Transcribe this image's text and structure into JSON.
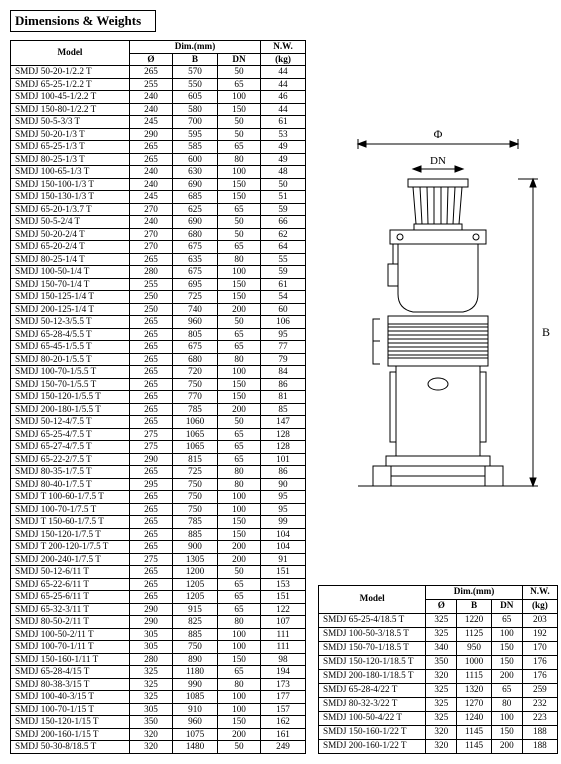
{
  "section_title": "Dimensions & Weights",
  "headers": {
    "model": "Model",
    "dim": "Dim.(mm)",
    "diam": "Ø",
    "b": "B",
    "dn": "DN",
    "nw": "N.W.",
    "nw_unit": "(kg)"
  },
  "diagram": {
    "phi_label": "Φ",
    "dn_label": "DN",
    "b_label": "B",
    "line_color": "#000000",
    "fill_color": "#ffffff"
  },
  "table1_rows": [
    [
      "SMDJ 50-20-1/2.2 T",
      "265",
      "570",
      "50",
      "44"
    ],
    [
      "SMDJ 65-25-1/2.2 T",
      "255",
      "550",
      "65",
      "44"
    ],
    [
      "SMDJ 100-45-1/2.2 T",
      "240",
      "605",
      "100",
      "46"
    ],
    [
      "SMDJ 150-80-1/2.2 T",
      "240",
      "580",
      "150",
      "44"
    ],
    [
      "SMDJ 50-5-3/3 T",
      "245",
      "700",
      "50",
      "61"
    ],
    [
      "SMDJ 50-20-1/3 T",
      "290",
      "595",
      "50",
      "53"
    ],
    [
      "SMDJ 65-25-1/3 T",
      "265",
      "585",
      "65",
      "49"
    ],
    [
      "SMDJ 80-25-1/3 T",
      "265",
      "600",
      "80",
      "49"
    ],
    [
      "SMDJ 100-65-1/3 T",
      "240",
      "630",
      "100",
      "48"
    ],
    [
      "SMDJ 150-100-1/3 T",
      "240",
      "690",
      "150",
      "50"
    ],
    [
      "SMDJ 150-130-1/3 T",
      "245",
      "685",
      "150",
      "51"
    ],
    [
      "SMDJ 65-20-1/3.7 T",
      "270",
      "625",
      "65",
      "59"
    ],
    [
      "SMDJ 50-5-2/4 T",
      "240",
      "690",
      "50",
      "66"
    ],
    [
      "SMDJ 50-20-2/4 T",
      "270",
      "680",
      "50",
      "62"
    ],
    [
      "SMDJ 65-20-2/4 T",
      "270",
      "675",
      "65",
      "64"
    ],
    [
      "SMDJ 80-25-1/4 T",
      "265",
      "635",
      "80",
      "55"
    ],
    [
      "SMDJ 100-50-1/4 T",
      "280",
      "675",
      "100",
      "59"
    ],
    [
      "SMDJ 150-70-1/4 T",
      "255",
      "695",
      "150",
      "61"
    ],
    [
      "SMDJ 150-125-1/4 T",
      "250",
      "725",
      "150",
      "54"
    ],
    [
      "SMDJ 200-125-1/4 T",
      "250",
      "740",
      "200",
      "60"
    ],
    [
      "SMDJ 50-12-3/5.5 T",
      "265",
      "960",
      "50",
      "106"
    ],
    [
      "SMDJ 65-28-4/5.5 T",
      "265",
      "805",
      "65",
      "95"
    ],
    [
      "SMDJ 65-45-1/5.5 T",
      "265",
      "675",
      "65",
      "77"
    ],
    [
      "SMDJ 80-20-1/5.5 T",
      "265",
      "680",
      "80",
      "79"
    ],
    [
      "SMDJ 100-70-1/5.5 T",
      "265",
      "720",
      "100",
      "84"
    ],
    [
      "SMDJ 150-70-1/5.5 T",
      "265",
      "750",
      "150",
      "86"
    ],
    [
      "SMDJ 150-120-1/5.5 T",
      "265",
      "770",
      "150",
      "81"
    ],
    [
      "SMDJ 200-180-1/5.5 T",
      "265",
      "785",
      "200",
      "85"
    ],
    [
      "SMDJ 50-12-4/7.5 T",
      "265",
      "1060",
      "50",
      "147"
    ],
    [
      "SMDJ 65-25-4/7.5 T",
      "275",
      "1065",
      "65",
      "128"
    ],
    [
      "SMDJ 65-27-4/7.5 T",
      "275",
      "1065",
      "65",
      "128"
    ],
    [
      "SMDJ 65-22-2/7.5 T",
      "290",
      "815",
      "65",
      "101"
    ],
    [
      "SMDJ 80-35-1/7.5 T",
      "265",
      "725",
      "80",
      "86"
    ],
    [
      "SMDJ 80-40-1/7.5 T",
      "295",
      "750",
      "80",
      "90"
    ],
    [
      "SMDJ T 100-60-1/7.5 T",
      "265",
      "750",
      "100",
      "95"
    ],
    [
      "SMDJ 100-70-1/7.5 T",
      "265",
      "750",
      "100",
      "95"
    ],
    [
      "SMDJ T 150-60-1/7.5 T",
      "265",
      "785",
      "150",
      "99"
    ],
    [
      "SMDJ 150-120-1/7.5 T",
      "265",
      "885",
      "150",
      "104"
    ],
    [
      "SMDJ T 200-120-1/7.5 T",
      "265",
      "900",
      "200",
      "104"
    ],
    [
      "SMDJ 200-240-1/7.5 T",
      "275",
      "1305",
      "200",
      "91"
    ],
    [
      "SMDJ 50-12-6/11 T",
      "265",
      "1200",
      "50",
      "151"
    ],
    [
      "SMDJ 65-22-6/11 T",
      "265",
      "1205",
      "65",
      "153"
    ],
    [
      "SMDJ 65-25-6/11 T",
      "265",
      "1205",
      "65",
      "151"
    ],
    [
      "SMDJ 65-32-3/11 T",
      "290",
      "915",
      "65",
      "122"
    ],
    [
      "SMDJ 80-50-2/11 T",
      "290",
      "825",
      "80",
      "107"
    ],
    [
      "SMDJ 100-50-2/11 T",
      "305",
      "885",
      "100",
      "111"
    ],
    [
      "SMDJ 100-70-1/11 T",
      "305",
      "750",
      "100",
      "111"
    ],
    [
      "SMDJ 150-160-1/11 T",
      "280",
      "890",
      "150",
      "98"
    ],
    [
      "SMDJ 65-28-4/15 T",
      "325",
      "1180",
      "65",
      "194"
    ],
    [
      "SMDJ 80-38-3/15 T",
      "325",
      "990",
      "80",
      "173"
    ],
    [
      "SMDJ 100-40-3/15 T",
      "325",
      "1085",
      "100",
      "177"
    ],
    [
      "SMDJ 100-70-1/15 T",
      "305",
      "910",
      "100",
      "157"
    ],
    [
      "SMDJ 150-120-1/15 T",
      "350",
      "960",
      "150",
      "162"
    ],
    [
      "SMDJ 200-160-1/15 T",
      "320",
      "1075",
      "200",
      "161"
    ],
    [
      "SMDJ 50-30-8/18.5 T",
      "320",
      "1480",
      "50",
      "249"
    ]
  ],
  "table2_rows": [
    [
      "SMDJ 65-25-4/18.5 T",
      "325",
      "1220",
      "65",
      "203"
    ],
    [
      "SMDJ 100-50-3/18.5 T",
      "325",
      "1125",
      "100",
      "192"
    ],
    [
      "SMDJ 150-70-1/18.5 T",
      "340",
      "950",
      "150",
      "170"
    ],
    [
      "SMDJ 150-120-1/18.5 T",
      "350",
      "1000",
      "150",
      "176"
    ],
    [
      "SMDJ 200-180-1/18.5 T",
      "320",
      "1115",
      "200",
      "176"
    ],
    [
      "SMDJ 65-28-4/22 T",
      "325",
      "1320",
      "65",
      "259"
    ],
    [
      "SMDJ 80-32-3/22 T",
      "325",
      "1270",
      "80",
      "232"
    ],
    [
      "SMDJ 100-50-4/22 T",
      "325",
      "1240",
      "100",
      "223"
    ],
    [
      "SMDJ 150-160-1/22 T",
      "320",
      "1145",
      "150",
      "188"
    ],
    [
      "SMDJ 200-160-1/22 T",
      "320",
      "1145",
      "200",
      "188"
    ]
  ],
  "colwidths": {
    "model": 110,
    "diam": 34,
    "b": 36,
    "dn": 34,
    "nw": 36
  }
}
